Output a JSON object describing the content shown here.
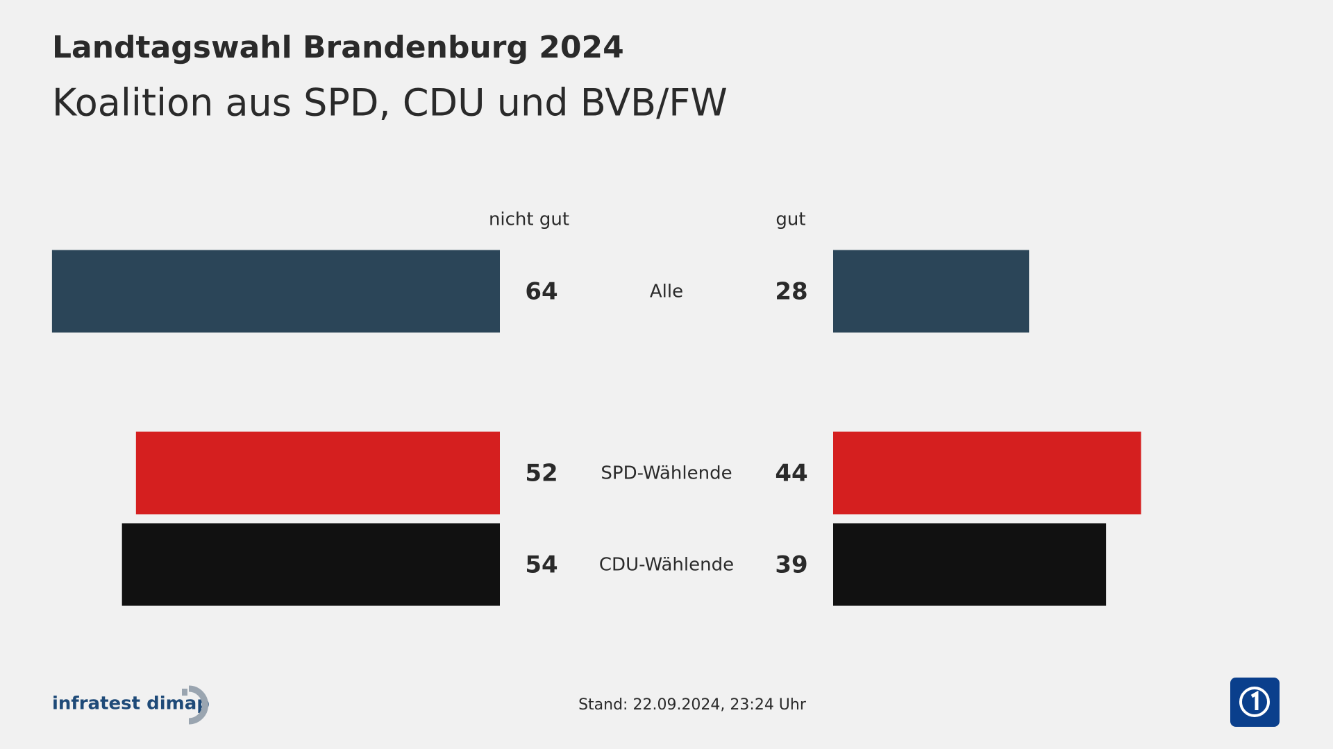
{
  "chart_data": {
    "type": "diverging_bar",
    "title": "Landtagswahl Brandenburg 2024",
    "subtitle": "Koalition aus SPD, CDU und BVB/FW",
    "categories": [
      "Alle",
      "SPD-Wählende",
      "CDU-Wählende"
    ],
    "category_colors": [
      "#2b4558",
      "#d51f1f",
      "#111111"
    ],
    "series": [
      {
        "name": "nicht gut",
        "side": "left",
        "values": [
          64,
          52,
          54
        ]
      },
      {
        "name": "gut",
        "side": "right",
        "values": [
          28,
          44,
          39
        ]
      }
    ],
    "source": "infratest dimap",
    "footer": "Stand:  22.09.2024, 23:24 Uhr"
  }
}
